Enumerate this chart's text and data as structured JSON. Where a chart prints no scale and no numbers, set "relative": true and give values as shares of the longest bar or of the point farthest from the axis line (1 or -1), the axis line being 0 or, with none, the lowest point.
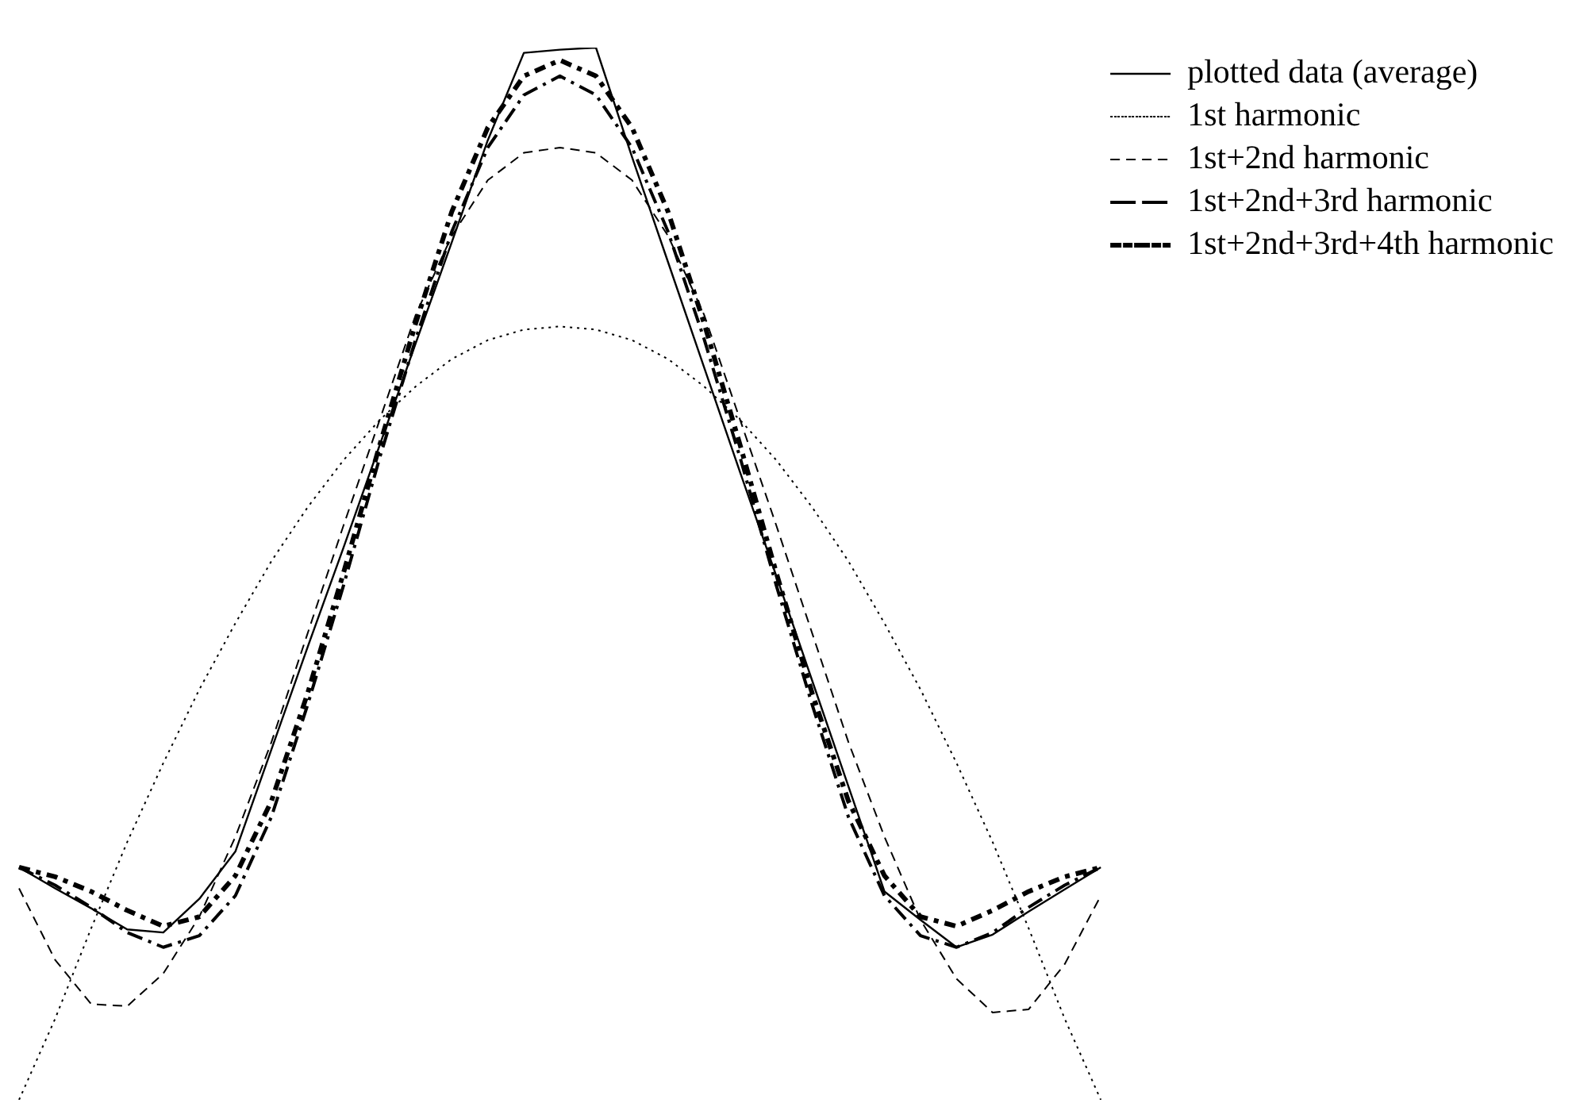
{
  "chart_data": {
    "type": "line",
    "relative": true,
    "marker": "none",
    "legend": "top right",
    "categories": [
      null,
      null,
      null,
      null,
      null,
      null,
      null,
      null,
      null,
      null,
      null,
      null,
      null,
      null,
      null,
      null,
      null,
      null,
      null,
      null,
      null,
      null,
      null,
      null,
      null,
      null,
      null,
      null,
      null,
      null,
      null
    ],
    "series": [
      {
        "name": "plotted data (average)",
        "color": "#000000",
        "line_style": "solid",
        "values": [
          0.221,
          0.201,
          0.182,
          0.162,
          0.159,
          0.191,
          0.236,
          0.333,
          0.43,
          0.525,
          0.622,
          0.719,
          0.815,
          0.912,
          0.995,
          0.998,
          1.0,
          0.896,
          0.796,
          0.696,
          0.596,
          0.498,
          0.398,
          0.298,
          0.198,
          0.171,
          0.145,
          0.157,
          0.179,
          0.2,
          0.221
        ]
      },
      {
        "name": "1st harmonic",
        "color": "#000000",
        "line_style": "dotted",
        "values": [
          0,
          0.077,
          0.163,
          0.245,
          0.32,
          0.39,
          0.453,
          0.512,
          0.563,
          0.608,
          0.646,
          0.678,
          0.704,
          0.722,
          0.732,
          0.735,
          0.732,
          0.722,
          0.704,
          0.678,
          0.646,
          0.608,
          0.563,
          0.512,
          0.453,
          0.39,
          0.32,
          0.245,
          0.163,
          0.077,
          0
        ]
      },
      {
        "name": "1st+2nd harmonic",
        "color": "#000000",
        "line_style": "dashed",
        "values": [
          0.201,
          0.133,
          0.091,
          0.089,
          0.12,
          0.174,
          0.25,
          0.34,
          0.443,
          0.546,
          0.646,
          0.746,
          0.821,
          0.874,
          0.9,
          0.905,
          0.9,
          0.874,
          0.821,
          0.746,
          0.646,
          0.546,
          0.443,
          0.34,
          0.25,
          0.171,
          0.115,
          0.083,
          0.086,
          0.129,
          0.194
        ]
      },
      {
        "name": "1st+2nd+3rd harmonic",
        "color": "#000000",
        "line_style": "longdashdot",
        "values": [
          0.221,
          0.204,
          0.183,
          0.159,
          0.145,
          0.156,
          0.194,
          0.269,
          0.375,
          0.489,
          0.61,
          0.723,
          0.825,
          0.905,
          0.955,
          0.973,
          0.955,
          0.905,
          0.825,
          0.723,
          0.61,
          0.489,
          0.375,
          0.269,
          0.194,
          0.156,
          0.145,
          0.159,
          0.183,
          0.204,
          0.221
        ]
      },
      {
        "name": "1st+2nd+3rd+4th harmonic",
        "color": "#000000",
        "line_style": "dashdot",
        "values": [
          0.221,
          0.212,
          0.198,
          0.18,
          0.165,
          0.174,
          0.213,
          0.284,
          0.386,
          0.501,
          0.622,
          0.738,
          0.844,
          0.924,
          0.973,
          0.988,
          0.973,
          0.924,
          0.844,
          0.738,
          0.622,
          0.501,
          0.386,
          0.284,
          0.213,
          0.174,
          0.165,
          0.18,
          0.198,
          0.212,
          0.221
        ]
      }
    ]
  }
}
